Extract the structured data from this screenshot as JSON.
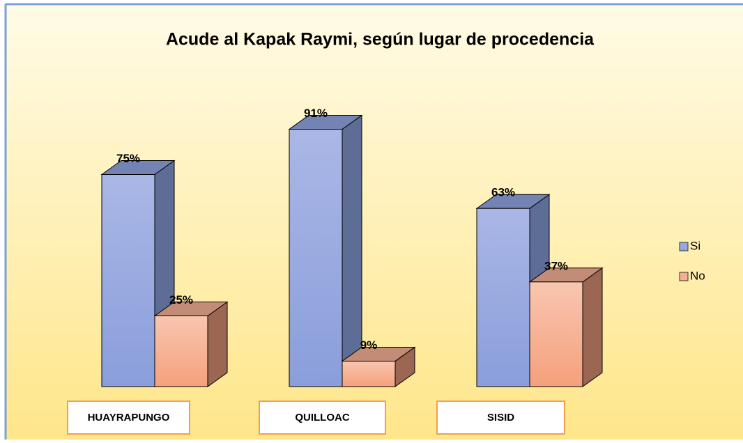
{
  "chart_data": {
    "type": "bar",
    "title": "Acude al Kapak Raymi, según lugar de procedencia",
    "categories": [
      "HUAYRAPUNGO",
      "QUILLOAC",
      "SISID"
    ],
    "series": [
      {
        "name": "Si",
        "color": "#98a8df",
        "values": [
          75,
          91,
          63
        ],
        "value_labels": [
          "75%",
          "91%",
          "63%"
        ]
      },
      {
        "name": "No",
        "color": "#f5b092",
        "values": [
          25,
          9,
          37
        ],
        "value_labels": [
          "25%",
          "9%",
          "37%"
        ]
      }
    ],
    "legend": "right"
  }
}
